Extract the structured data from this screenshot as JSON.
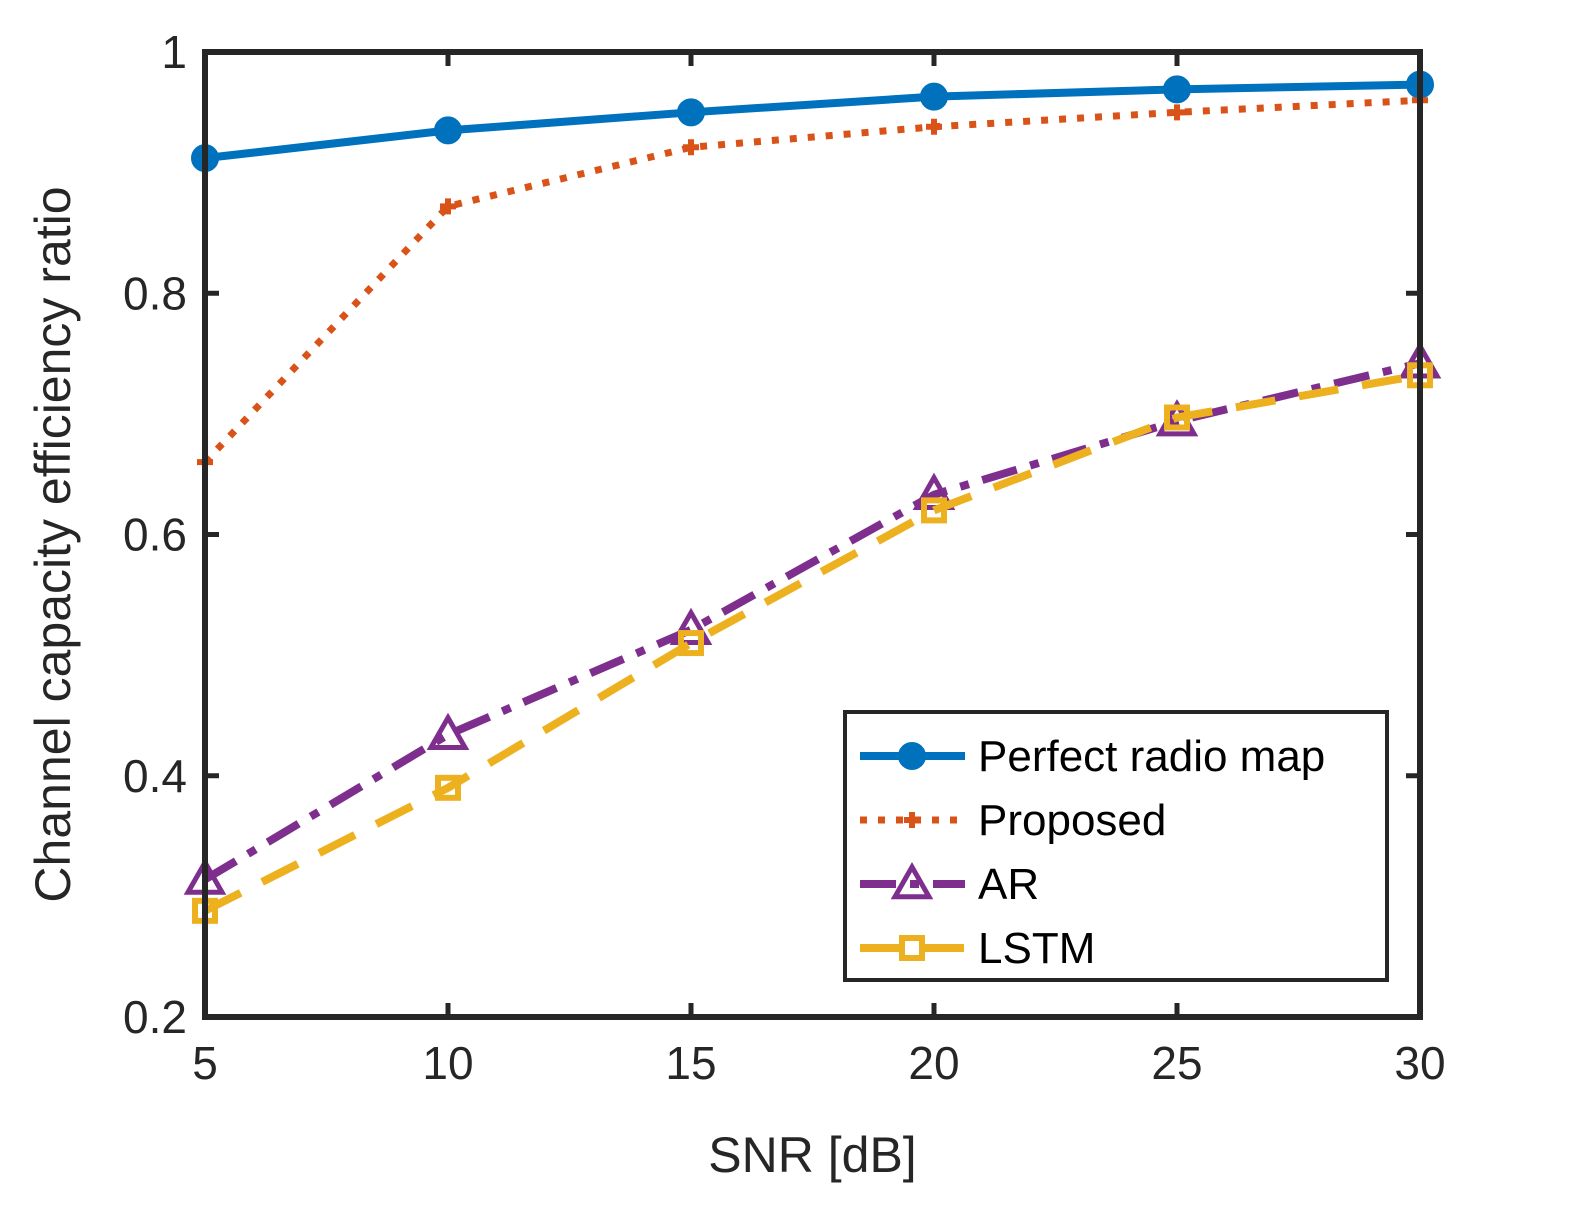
{
  "chart_data": {
    "type": "line",
    "title": "",
    "xlabel": "SNR [dB]",
    "ylabel": "Channel capacity efficiency ratio",
    "x": [
      5,
      10,
      15,
      20,
      25,
      30
    ],
    "xlim": [
      5,
      30
    ],
    "ylim": [
      0.2,
      1
    ],
    "xticks": [
      5,
      10,
      15,
      20,
      25,
      30
    ],
    "yticks": [
      0.2,
      0.4,
      0.6,
      0.8,
      1
    ],
    "xtick_labels": [
      "5",
      "10",
      "15",
      "20",
      "25",
      "30"
    ],
    "ytick_labels": [
      "0.2",
      "0.4",
      "0.6",
      "0.8",
      "1"
    ],
    "grid": false,
    "legend_position": "bottom-right",
    "series": [
      {
        "name": "Perfect radio map",
        "color": "#0072BD",
        "line_style": "solid",
        "marker": "circle",
        "values": [
          0.912,
          0.935,
          0.95,
          0.963,
          0.969,
          0.973
        ]
      },
      {
        "name": "Proposed",
        "color": "#D95319",
        "line_style": "dotted",
        "marker": "plus",
        "values": [
          0.66,
          0.872,
          0.921,
          0.938,
          0.95,
          0.96
        ]
      },
      {
        "name": "AR",
        "color": "#7E2F8E",
        "line_style": "dashdot",
        "marker": "triangle",
        "values": [
          0.314,
          0.434,
          0.521,
          0.633,
          0.694,
          0.742
        ]
      },
      {
        "name": "LSTM",
        "color": "#EDB120",
        "line_style": "dashed",
        "marker": "square",
        "values": [
          0.288,
          0.39,
          0.51,
          0.62,
          0.697,
          0.732
        ]
      }
    ]
  }
}
